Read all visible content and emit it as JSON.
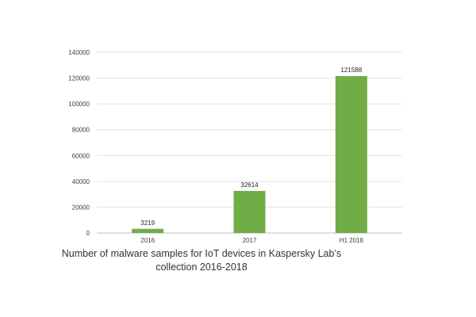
{
  "chart_data": {
    "type": "bar",
    "categories": [
      "2016",
      "2017",
      "H1 2018"
    ],
    "values": [
      3219,
      32614,
      121588
    ],
    "data_labels": [
      "3219",
      "32614",
      "121588"
    ],
    "y_ticks": [
      "0",
      "20000",
      "40000",
      "60000",
      "80000",
      "100000",
      "120000",
      "140000"
    ],
    "ylim": [
      0,
      140000
    ],
    "grid": true,
    "legend": "none",
    "bar_color": "#70ad47",
    "title_lines": [
      "Number of malware samples for IoT devices in Kaspersky Lab’s",
      "collection 2016-2018"
    ],
    "xlabel": "",
    "ylabel": ""
  }
}
